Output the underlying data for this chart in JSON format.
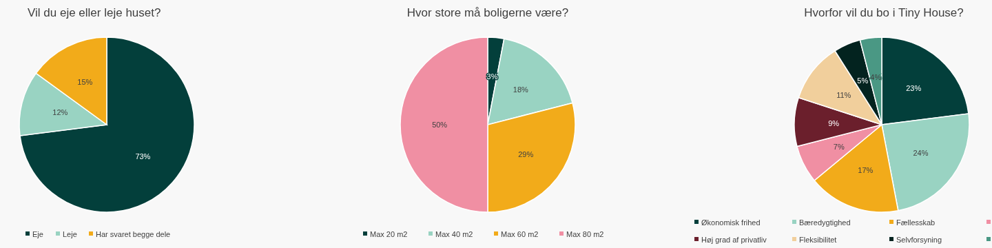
{
  "chart_data": [
    {
      "type": "pie",
      "title": "Vil du eje eller leje huset?",
      "categories": [
        "Eje",
        "Leje",
        "Har svaret begge dele"
      ],
      "values": [
        73,
        12,
        15
      ],
      "value_labels": [
        "73%",
        "12%",
        "15%"
      ],
      "colors": [
        "#033f3b",
        "#99d3c2",
        "#f2ab1a"
      ],
      "legend": "bottom"
    },
    {
      "type": "pie",
      "title": "Hvor store må boligerne være?",
      "categories": [
        "Max 20 m2",
        "Max 40 m2",
        "Max 60 m2",
        "Max 80 m2"
      ],
      "values": [
        3,
        18,
        29,
        50
      ],
      "value_labels": [
        "3%",
        "18%",
        "29%",
        "50%"
      ],
      "colors": [
        "#033f3b",
        "#99d3c2",
        "#f2ab1a",
        "#f08fa3"
      ],
      "legend": "bottom"
    },
    {
      "type": "pie",
      "title": "Hvorfor vil du bo i Tiny House?",
      "categories": [
        "Økonomisk frihed",
        "Bæredygtighed",
        "Fællesskab",
        null,
        "Høj grad af privatliv",
        "Fleksibilitet",
        "Selvforsyning",
        null
      ],
      "values": [
        23,
        24,
        17,
        7,
        9,
        11,
        5,
        4
      ],
      "value_labels": [
        "23%",
        "24%",
        "17%",
        "7%",
        "9%",
        "11%",
        "5%",
        "4%"
      ],
      "colors": [
        "#033f3b",
        "#99d3c2",
        "#f2ab1a",
        "#f08fa3",
        "#6b1f2c",
        "#f1cf9c",
        "#03231f",
        "#4a9884"
      ],
      "legend": "bottom"
    }
  ]
}
